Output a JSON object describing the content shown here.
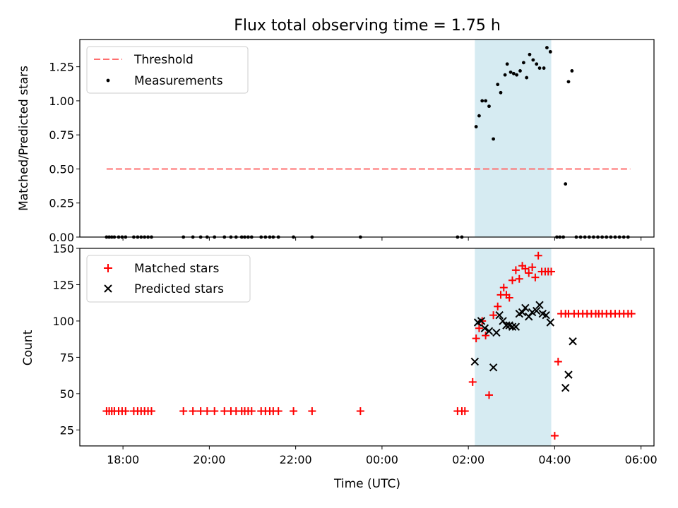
{
  "chart_data": [
    {
      "type": "scatter",
      "title": "Flux total observing time = 1.75 h",
      "xlabel": "",
      "ylabel": "Matched/Predicted stars",
      "ylim": [
        0,
        1.45
      ],
      "xlim": [
        17.0,
        30.3
      ],
      "yticks": [
        0,
        0.25,
        0.5,
        0.75,
        1.0,
        1.25
      ],
      "ytick_labels": [
        "0.00",
        "0.25",
        "0.50",
        "0.75",
        "1.00",
        "1.25"
      ],
      "shaded_span": [
        26.15,
        27.92
      ],
      "legend_position": "upper left",
      "series": [
        {
          "name": "Threshold",
          "style": "dashed",
          "color": "#ff6f6f",
          "x": [
            17.62,
            29.75
          ],
          "y": [
            0.5,
            0.5
          ]
        },
        {
          "name": "Measurements",
          "style": "dots",
          "color": "#000000",
          "x": [
            17.62,
            17.68,
            17.74,
            17.8,
            17.9,
            17.98,
            18.06,
            18.25,
            18.34,
            18.42,
            18.5,
            18.58,
            18.66,
            19.4,
            19.62,
            19.8,
            19.95,
            20.12,
            20.35,
            20.5,
            20.62,
            20.75,
            20.82,
            20.9,
            20.98,
            21.2,
            21.3,
            21.4,
            21.48,
            21.6,
            21.95,
            22.38,
            23.5,
            25.75,
            25.85,
            26.18,
            26.25,
            26.32,
            26.4,
            26.48,
            26.58,
            26.68,
            26.75,
            26.85,
            26.9,
            26.98,
            27.05,
            27.12,
            27.2,
            27.28,
            27.35,
            27.42,
            27.5,
            27.58,
            27.65,
            27.75,
            27.82,
            27.9,
            28.05,
            28.12,
            28.2,
            28.25,
            28.32,
            28.4,
            28.5,
            28.6,
            28.7,
            28.8,
            28.9,
            29.0,
            29.1,
            29.2,
            29.3,
            29.4,
            29.5,
            29.6,
            29.7
          ],
          "y": [
            0,
            0,
            0,
            0,
            0,
            0,
            0,
            0,
            0,
            0,
            0,
            0,
            0,
            0,
            0,
            0,
            0,
            0,
            0,
            0,
            0,
            0,
            0,
            0,
            0,
            0,
            0,
            0,
            0,
            0,
            0,
            0,
            0,
            0,
            0,
            0.81,
            0.89,
            1.0,
            1.0,
            0.96,
            0.72,
            1.12,
            1.06,
            1.19,
            1.27,
            1.21,
            1.2,
            1.19,
            1.22,
            1.28,
            1.17,
            1.34,
            1.3,
            1.27,
            1.24,
            1.24,
            1.39,
            1.36,
            0,
            0,
            0,
            0.39,
            1.14,
            1.22,
            0,
            0,
            0,
            0,
            0,
            0,
            0,
            0,
            0,
            0,
            0,
            0,
            0
          ]
        }
      ]
    },
    {
      "type": "scatter",
      "title": "",
      "xlabel": "Time (UTC)",
      "ylabel": "Count",
      "ylim": [
        14,
        150
      ],
      "xlim": [
        17.0,
        30.3
      ],
      "yticks": [
        25,
        50,
        75,
        100,
        125,
        150
      ],
      "ytick_labels": [
        "25",
        "50",
        "75",
        "100",
        "125",
        "150"
      ],
      "xticks": [
        18,
        20,
        22,
        24,
        26,
        28,
        30
      ],
      "xtick_labels": [
        "18:00",
        "20:00",
        "22:00",
        "00:00",
        "02:00",
        "04:00",
        "06:00"
      ],
      "shaded_span": [
        26.15,
        27.92
      ],
      "legend_position": "upper left",
      "series": [
        {
          "name": "Matched stars",
          "marker": "+",
          "color": "#ff0000",
          "x": [
            17.62,
            17.68,
            17.74,
            17.8,
            17.9,
            17.98,
            18.06,
            18.25,
            18.34,
            18.42,
            18.5,
            18.58,
            18.66,
            19.4,
            19.62,
            19.8,
            19.95,
            20.12,
            20.35,
            20.5,
            20.62,
            20.75,
            20.82,
            20.9,
            20.98,
            21.2,
            21.3,
            21.4,
            21.48,
            21.6,
            21.95,
            22.38,
            23.5,
            25.75,
            25.85,
            25.92,
            26.1,
            26.18,
            26.25,
            26.32,
            26.4,
            26.48,
            26.58,
            26.68,
            26.75,
            26.82,
            26.88,
            26.95,
            27.02,
            27.1,
            27.18,
            27.25,
            27.32,
            27.4,
            27.48,
            27.55,
            27.62,
            27.7,
            27.78,
            27.85,
            27.92,
            28.0,
            28.08,
            28.15,
            28.25,
            28.32,
            28.45,
            28.55,
            28.65,
            28.75,
            28.85,
            28.95,
            29.02,
            29.1,
            29.2,
            29.3,
            29.4,
            29.5,
            29.6,
            29.7,
            29.78
          ],
          "y": [
            38,
            38,
            38,
            38,
            38,
            38,
            38,
            38,
            38,
            38,
            38,
            38,
            38,
            38,
            38,
            38,
            38,
            38,
            38,
            38,
            38,
            38,
            38,
            38,
            38,
            38,
            38,
            38,
            38,
            38,
            38,
            38,
            38,
            38,
            38,
            38,
            58,
            88,
            95,
            100,
            90,
            49,
            104,
            110,
            118,
            123,
            118,
            116,
            128,
            135,
            129,
            138,
            136,
            133,
            137,
            130,
            145,
            134,
            134,
            134,
            134,
            21,
            72,
            105,
            105,
            105,
            105,
            105,
            105,
            105,
            105,
            105,
            105,
            105,
            105,
            105,
            105,
            105,
            105,
            105,
            105
          ]
        },
        {
          "name": "Predicted stars",
          "marker": "x",
          "color": "#000000",
          "x": [
            26.15,
            26.22,
            26.3,
            26.38,
            26.48,
            26.58,
            26.65,
            26.72,
            26.8,
            26.88,
            26.95,
            27.02,
            27.1,
            27.18,
            27.25,
            27.32,
            27.4,
            27.48,
            27.58,
            27.65,
            27.72,
            27.8,
            27.9,
            28.25,
            28.32,
            28.42
          ],
          "y": [
            72,
            99,
            100,
            95,
            93,
            68,
            92,
            104,
            100,
            97,
            97,
            96,
            96,
            105,
            106,
            109,
            103,
            106,
            107,
            111,
            105,
            104,
            99,
            54,
            63,
            86
          ]
        }
      ]
    }
  ]
}
